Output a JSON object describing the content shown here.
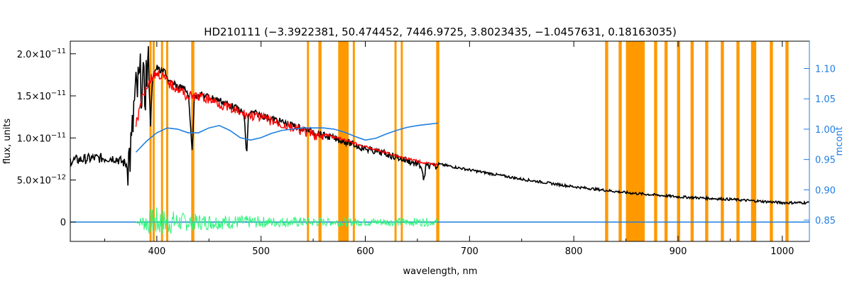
{
  "chart_data": {
    "type": "line",
    "title": "HD210111   (−3.3922381, 50.474452, 7446.9725, 3.8023435, −1.0457631, 0.18163035)",
    "xlabel": "wavelength, nm",
    "ylabel": "flux, units",
    "y2label": "mcont",
    "xlim": [
      317,
      1026
    ],
    "ylim": [
      -2.3e-12,
      2.15e-11
    ],
    "y2lim": [
      0.815,
      1.145
    ],
    "x_ticks": [
      400,
      500,
      600,
      700,
      800,
      900,
      1000
    ],
    "y_ticks": [
      {
        "value": 0,
        "mant": "0",
        "exp": ""
      },
      {
        "value": 5e-12,
        "mant": "5.0×10",
        "exp": "−12"
      },
      {
        "value": 1e-11,
        "mant": "1.0×10",
        "exp": "−11"
      },
      {
        "value": 1.5e-11,
        "mant": "1.5×10",
        "exp": "−11"
      },
      {
        "value": 2e-11,
        "mant": "2.0×10",
        "exp": "−11"
      }
    ],
    "y2_ticks": [
      0.85,
      0.9,
      0.95,
      1.0,
      1.05,
      1.1
    ],
    "y2_tick_labels": [
      "0.85",
      "0.90",
      "0.95",
      "1.00",
      "1.05",
      "1.10"
    ],
    "masked_bands": [
      [
        393,
        395
      ],
      [
        396,
        398
      ],
      [
        404,
        406
      ],
      [
        409,
        411
      ],
      [
        433,
        436
      ],
      [
        544,
        546
      ],
      [
        555,
        558
      ],
      [
        574,
        584
      ],
      [
        588,
        590
      ],
      [
        628,
        630
      ],
      [
        634,
        636
      ],
      [
        668,
        671
      ],
      [
        830,
        833
      ],
      [
        843,
        846
      ],
      [
        850,
        868
      ],
      [
        877,
        880
      ],
      [
        887,
        890
      ],
      [
        899,
        902
      ],
      [
        912,
        915
      ],
      [
        926,
        929
      ],
      [
        941,
        944
      ],
      [
        956,
        959
      ],
      [
        970,
        975
      ],
      [
        988,
        991
      ],
      [
        1003,
        1006
      ]
    ],
    "series": [
      {
        "key": "observed",
        "color": "#000000",
        "x": [
          317,
          340,
          360,
          372,
          376,
          378,
          380,
          383,
          385,
          388,
          390,
          392,
          394,
          396,
          398,
          400,
          402,
          405,
          408,
          410,
          412,
          415,
          420,
          425,
          430,
          434,
          436,
          440,
          450,
          460,
          470,
          480,
          484,
          486,
          488,
          490,
          495,
          500,
          520,
          540,
          560,
          580,
          600,
          620,
          640,
          650,
          654,
          656,
          658,
          660,
          670,
          700,
          750,
          800,
          850,
          900,
          950,
          1000,
          1026
        ],
        "y": [
          7.3e-12,
          7.6e-12,
          7.6e-12,
          6.8e-12,
          9e-12,
          1.35e-11,
          1.5e-11,
          1.62e-11,
          1.7e-11,
          1.5e-11,
          1.75e-11,
          1.8e-11,
          1.2e-11,
          1.78e-11,
          1.83e-11,
          1.88e-11,
          1.85e-11,
          1.82e-11,
          1.84e-11,
          1.75e-11,
          1.7e-11,
          1.68e-11,
          1.66e-11,
          1.63e-11,
          1.58e-11,
          9e-12,
          1.52e-11,
          1.56e-11,
          1.53e-11,
          1.49e-11,
          1.43e-11,
          1.37e-11,
          1.3e-11,
          8e-12,
          1.32e-11,
          1.34e-11,
          1.33e-11,
          1.31e-11,
          1.23e-11,
          1.15e-11,
          1.07e-11,
          1e-11,
          9.1e-12,
          8.5e-12,
          7.7e-12,
          7.3e-12,
          7e-12,
          5e-12,
          7e-12,
          7.1e-12,
          6.9e-12,
          6.2e-12,
          5.1e-12,
          4.2e-12,
          3.5e-12,
          3e-12,
          2.7e-12,
          2.3e-12,
          2.3e-12
        ]
      },
      {
        "key": "model",
        "color": "#ff0000",
        "x": [
          380,
          385,
          390,
          395,
          400,
          405,
          410,
          415,
          420,
          430,
          440,
          450,
          460,
          470,
          480,
          490,
          500,
          520,
          540,
          560,
          580,
          600,
          620,
          640,
          660,
          670
        ],
        "y": [
          1.2e-11,
          1.5e-11,
          1.68e-11,
          1.78e-11,
          1.83e-11,
          1.8e-11,
          1.72e-11,
          1.68e-11,
          1.65e-11,
          1.55e-11,
          1.55e-11,
          1.52e-11,
          1.47e-11,
          1.41e-11,
          1.35e-11,
          1.33e-11,
          1.3e-11,
          1.22e-11,
          1.14e-11,
          1.06e-11,
          9.9e-12,
          9.1e-12,
          8.4e-12,
          7.7e-12,
          7.1e-12,
          6.9e-12
        ]
      },
      {
        "key": "residual",
        "color": "#2ef57a",
        "x": [
          380,
          390,
          400,
          410,
          420,
          440,
          460,
          480,
          500,
          520,
          540,
          560,
          580,
          600,
          620,
          640,
          660,
          670
        ],
        "y": [
          0,
          0,
          0,
          0,
          0,
          0,
          0,
          0,
          0,
          0,
          0,
          0,
          0,
          0,
          0,
          0,
          0,
          0
        ],
        "amplitude": [
          0,
          1.4e-12,
          1.8e-12,
          1.6e-12,
          1.2e-12,
          1e-12,
          9e-13,
          8e-13,
          7e-13,
          6e-13,
          6e-13,
          5e-13,
          5e-13,
          5e-13,
          5e-13,
          5e-13,
          5e-13,
          3e-13
        ]
      },
      {
        "key": "baseline",
        "color": "#1f7fe0",
        "x": [
          317,
          1026
        ],
        "y": [
          0,
          0
        ]
      },
      {
        "key": "mcont",
        "axis": "right",
        "color": "#1f7fe0",
        "x": [
          380,
          390,
          400,
          410,
          420,
          430,
          440,
          450,
          460,
          470,
          480,
          490,
          500,
          510,
          520,
          540,
          560,
          570,
          580,
          590,
          600,
          610,
          620,
          630,
          640,
          650,
          660,
          670
        ],
        "y": [
          0.962,
          0.98,
          0.994,
          1.002,
          1.0,
          0.994,
          0.994,
          1.002,
          1.006,
          0.998,
          0.986,
          0.982,
          0.986,
          0.993,
          0.998,
          1.002,
          1.002,
          1.0,
          0.995,
          0.988,
          0.982,
          0.985,
          0.992,
          0.998,
          1.003,
          1.006,
          1.008,
          1.01
        ]
      }
    ]
  },
  "colors": {
    "band": "#ff9900",
    "axis": "#000000",
    "right_axis": "#1f7fe0"
  }
}
